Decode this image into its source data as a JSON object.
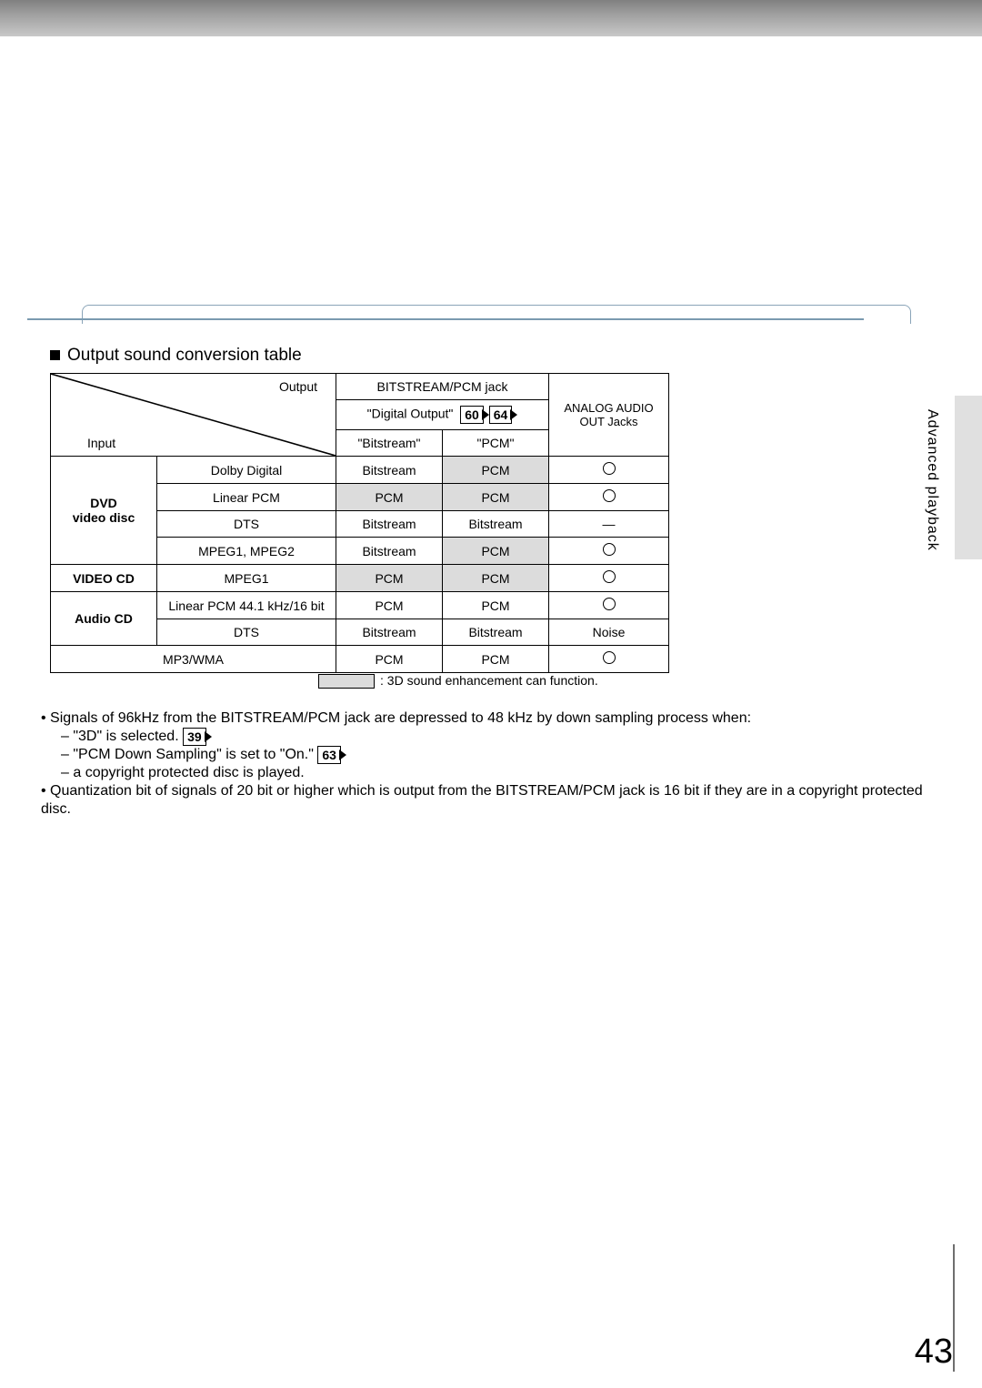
{
  "section_tab_label": "Advanced playback",
  "heading": "Output sound conversion table",
  "page_number": "43",
  "table": {
    "top": {
      "input_label": "Input",
      "output_label": "Output",
      "bitstream_pcm_jack": "BITSTREAM/PCM jack",
      "digital_output": "\"Digital Output\"",
      "digital_output_refs": [
        "60",
        "64"
      ],
      "bitstream_col": "\"Bitstream\"",
      "pcm_col": "\"PCM\"",
      "analog_line1": "ANALOG AUDIO",
      "analog_line2": "OUT Jacks"
    },
    "groups": [
      {
        "category": "DVD\nvideo disc",
        "bold": true,
        "rows": [
          {
            "format": "Dolby Digital",
            "bitstream": "Bitstream",
            "pcm": "PCM",
            "pcm_shaded": true,
            "analog": "circle"
          },
          {
            "format": "Linear PCM",
            "bitstream": "PCM",
            "bitstream_shaded": true,
            "pcm": "PCM",
            "pcm_shaded": true,
            "analog": "circle"
          },
          {
            "format": "DTS",
            "bitstream": "Bitstream",
            "pcm": "Bitstream",
            "analog": "dash"
          },
          {
            "format": "MPEG1, MPEG2",
            "bitstream": "Bitstream",
            "pcm": "PCM",
            "pcm_shaded": true,
            "analog": "circle"
          }
        ]
      },
      {
        "category": "VIDEO CD",
        "bold": true,
        "rows": [
          {
            "format": "MPEG1",
            "bitstream": "PCM",
            "bitstream_shaded": true,
            "pcm": "PCM",
            "pcm_shaded": true,
            "analog": "circle"
          }
        ]
      },
      {
        "category": "Audio CD",
        "bold": true,
        "rows": [
          {
            "format": "Linear PCM 44.1 kHz/16 bit",
            "bitstream": "PCM",
            "pcm": "PCM",
            "analog": "circle"
          },
          {
            "format": "DTS",
            "bitstream": "Bitstream",
            "pcm": "Bitstream",
            "analog": "Noise"
          }
        ]
      },
      {
        "category": "",
        "span_full": true,
        "rows": [
          {
            "format": "MP3/WMA",
            "bitstream": "PCM",
            "pcm": "PCM",
            "analog": "circle"
          }
        ]
      }
    ]
  },
  "legend_text": ": 3D sound enhancement can function.",
  "notes": {
    "bullets": [
      {
        "text": "Signals of 96kHz from the BITSTREAM/PCM jack are depressed to 48 kHz by down sampling process when:",
        "sub": [
          {
            "text": "\"3D\" is selected.",
            "ref": "39"
          },
          {
            "text": "\"PCM Down Sampling\" is set to \"On.\"",
            "ref": "63"
          },
          {
            "text": "a copyright protected disc is played."
          }
        ]
      },
      {
        "text": "Quantization bit of signals of 20 bit or higher which is output from the BITSTREAM/PCM jack is 16 bit if they are in a copyright protected disc."
      }
    ]
  },
  "colors": {
    "shade": "#dcdcdc",
    "border": "#000000",
    "top_gradient_from": "#808080",
    "top_gradient_to": "#c8c8c8"
  }
}
